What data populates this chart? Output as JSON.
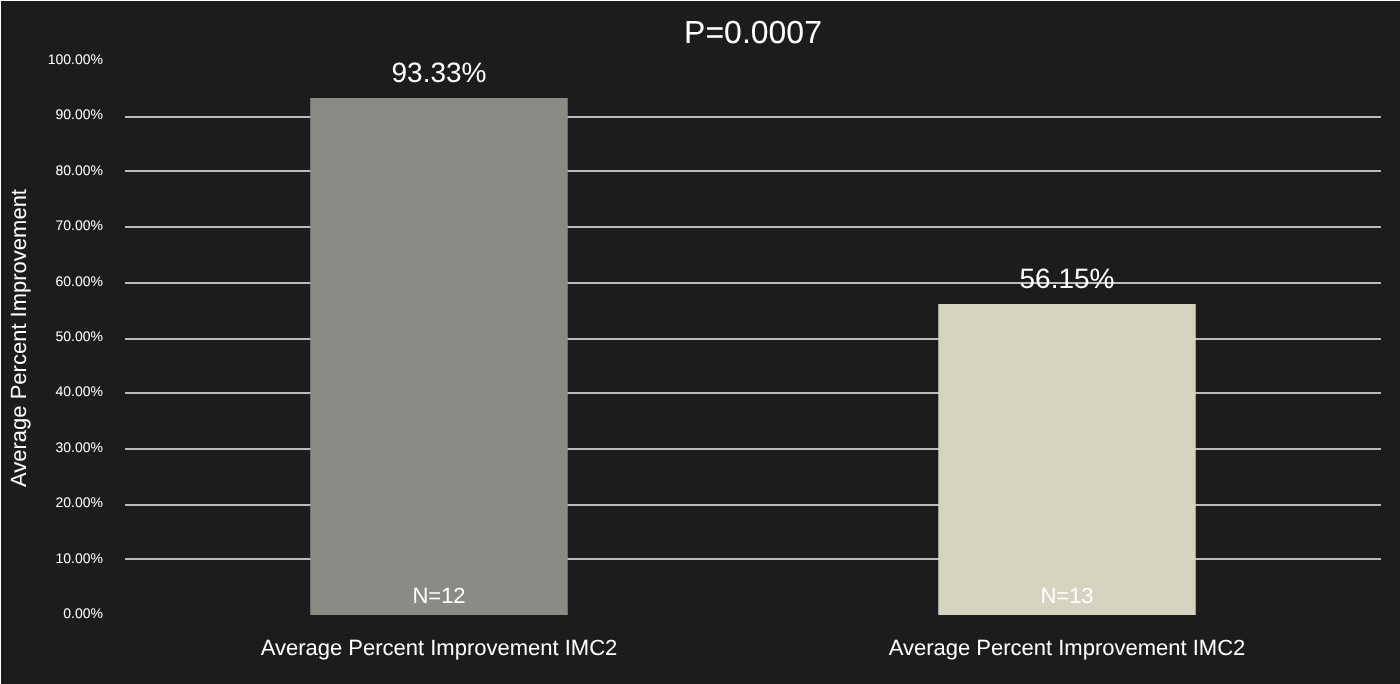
{
  "chart_data": {
    "type": "bar",
    "title": "P=0.0007",
    "ylabel": "Average Percent Improvement",
    "categories": [
      "Average Percent Improvement IMC2",
      "Average Percent Improvement IMC2"
    ],
    "values": [
      93.33,
      56.15
    ],
    "colors": [
      "#8b8b86",
      "#d3d3bf"
    ],
    "value_labels": [
      "93.33%",
      "56.15%"
    ],
    "ylim": [
      0,
      100
    ],
    "yticks": [
      {
        "value": 0,
        "label": "0.00%"
      },
      {
        "value": 10,
        "label": "10.00%"
      },
      {
        "value": 20,
        "label": "20.00%"
      },
      {
        "value": 30,
        "label": "30.00%"
      },
      {
        "value": 40,
        "label": "40.00%"
      },
      {
        "value": 50,
        "label": "50.00%"
      },
      {
        "value": 60,
        "label": "60.00%"
      },
      {
        "value": 70,
        "label": "70.00%"
      },
      {
        "value": 80,
        "label": "80.00%"
      },
      {
        "value": 90,
        "label": "90.00%"
      },
      {
        "value": 100,
        "label": "100.00%"
      }
    ],
    "grid": "y",
    "annotations": [
      "N=12",
      "N=13"
    ]
  }
}
